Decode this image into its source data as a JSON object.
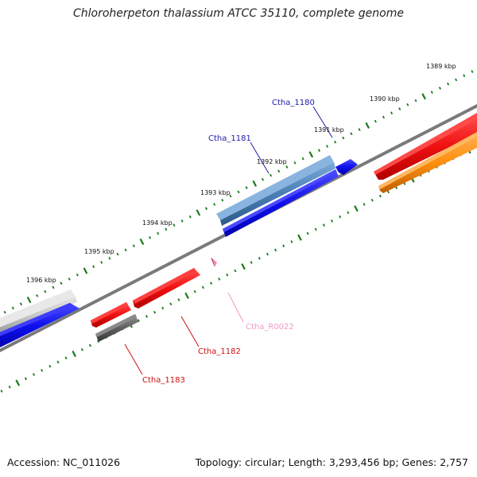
{
  "title": "Chloroherpeton thalassium ATCC 35110, complete genome",
  "footer": {
    "accession": "Accession: NC_011026",
    "summary": "Topology: circular; Length: 3,293,456 bp; Genes: 2,757"
  },
  "ticks": [
    {
      "label": "1389 kbp"
    },
    {
      "label": "1390 kbp"
    },
    {
      "label": "1391 kbp"
    },
    {
      "label": "1392 kbp"
    },
    {
      "label": "1393 kbp"
    },
    {
      "label": "1394 kbp"
    },
    {
      "label": "1395 kbp"
    },
    {
      "label": "1396 kbp"
    }
  ],
  "genes": [
    {
      "name": "Ctha_1180",
      "color": "#1a1aa8"
    },
    {
      "name": "Ctha_1181",
      "color": "#1a1aa8"
    },
    {
      "name": "Ctha_R0022",
      "color": "#f09ac4"
    },
    {
      "name": "Ctha_1182",
      "color": "#cc1111"
    },
    {
      "name": "Ctha_1183",
      "color": "#cc1111"
    }
  ],
  "colors": {
    "forward_cds": "#0a0af0",
    "reverse_cds": "#f01010",
    "rna": "#f58ab8",
    "orange_feature": "#ff9010",
    "steel_blue_feature": "#4a7fb4",
    "gray_feature": "#606060",
    "backbone": "#7a7a7a",
    "tick": "#1a7a1a"
  }
}
